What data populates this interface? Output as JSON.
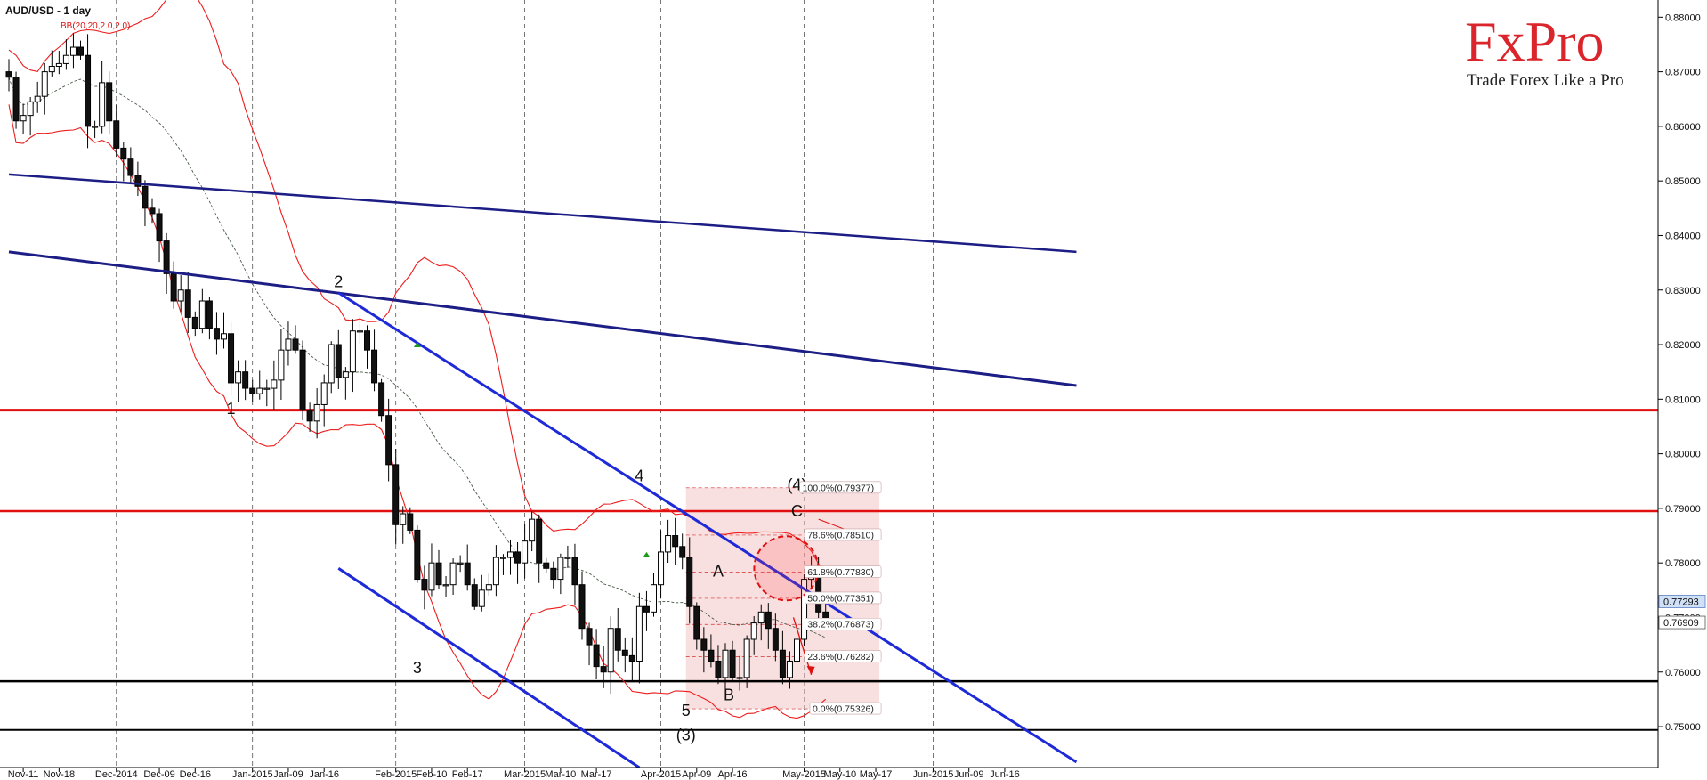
{
  "header": {
    "title": "AUD/USD - 1 day",
    "indicator": "BB(20,20,2.0,2.0)"
  },
  "logo": {
    "brand": "FxPro",
    "tagline": "Trade Forex Like a Pro"
  },
  "colors": {
    "bull": "#ffffff",
    "bear": "#111111",
    "boll": "#ee1c1c",
    "mid": "#4a5a4a",
    "blue": "#1e2ad8",
    "navy": "#1d1d86",
    "red": "#e01010",
    "black": "#000000",
    "fib": "#f4c6c6"
  },
  "chart_data": {
    "type": "candlestick",
    "title": "AUD/USD - 1 day",
    "ylim": [
      0.7425,
      0.8825
    ],
    "y_ticks": [
      0.75,
      0.76,
      0.77,
      0.78,
      0.79,
      0.8,
      0.81,
      0.82,
      0.83,
      0.84,
      0.85,
      0.86,
      0.87,
      0.88
    ],
    "x_labels": [
      {
        "label": "Nov-11",
        "i": 2
      },
      {
        "label": "Nov-18",
        "i": 7
      },
      {
        "label": "Dec-2014",
        "i": 15
      },
      {
        "label": "Dec-09",
        "i": 21
      },
      {
        "label": "Dec-16",
        "i": 26
      },
      {
        "label": "Jan-2015",
        "i": 34
      },
      {
        "label": "Jan-09",
        "i": 39
      },
      {
        "label": "Jan-16",
        "i": 44
      },
      {
        "label": "Feb-2015",
        "i": 54
      },
      {
        "label": "Feb-10",
        "i": 59
      },
      {
        "label": "Feb-17",
        "i": 64
      },
      {
        "label": "Mar-2015",
        "i": 72
      },
      {
        "label": "Mar-10",
        "i": 77
      },
      {
        "label": "Mar-17",
        "i": 82
      },
      {
        "label": "Apr-2015",
        "i": 91
      },
      {
        "label": "Apr-09",
        "i": 96
      },
      {
        "label": "Apr-16",
        "i": 101
      },
      {
        "label": "May-2015",
        "i": 111
      },
      {
        "label": "May-10",
        "i": 116
      },
      {
        "label": "May-17",
        "i": 121
      },
      {
        "label": "Jun-2015",
        "i": 129
      },
      {
        "label": "Jun-09",
        "i": 134
      },
      {
        "label": "Jun-16",
        "i": 139
      }
    ],
    "closes": [
      0.869,
      0.861,
      0.862,
      0.8645,
      0.8655,
      0.87,
      0.871,
      0.8715,
      0.873,
      0.8745,
      0.873,
      0.86,
      0.86,
      0.868,
      0.861,
      0.856,
      0.854,
      0.851,
      0.849,
      0.845,
      0.844,
      0.839,
      0.833,
      0.828,
      0.83,
      0.825,
      0.823,
      0.828,
      0.823,
      0.821,
      0.822,
      0.813,
      0.815,
      0.812,
      0.811,
      0.812,
      0.812,
      0.8135,
      0.819,
      0.821,
      0.819,
      0.808,
      0.806,
      0.809,
      0.813,
      0.82,
      0.814,
      0.815,
      0.8225,
      0.8225,
      0.819,
      0.813,
      0.807,
      0.798,
      0.787,
      0.789,
      0.786,
      0.777,
      0.775,
      0.78,
      0.776,
      0.776,
      0.78,
      0.78,
      0.776,
      0.772,
      0.775,
      0.776,
      0.781,
      0.781,
      0.782,
      0.78,
      0.784,
      0.788,
      0.78,
      0.779,
      0.777,
      0.781,
      0.781,
      0.776,
      0.768,
      0.765,
      0.761,
      0.76,
      0.768,
      0.764,
      0.763,
      0.762,
      0.772,
      0.771,
      0.776,
      0.782,
      0.785,
      0.783,
      0.781,
      0.772,
      0.766,
      0.764,
      0.762,
      0.759,
      0.764,
      0.759,
      0.759,
      0.766,
      0.769,
      0.771,
      0.768,
      0.764,
      0.759,
      0.762,
      0.766,
      0.777,
      0.779,
      0.771,
      0.769
    ],
    "lines": {
      "upper_channel": {
        "from": [
          0,
          0.8512
        ],
        "to": [
          149,
          0.837
        ]
      },
      "mid_channel": {
        "from": [
          0,
          0.837
        ],
        "to": [
          149,
          0.8125
        ]
      },
      "downtrend": {
        "from": [
          46,
          0.8295
        ],
        "to": [
          149,
          0.7435
        ]
      },
      "lower_channel": {
        "from": [
          46,
          0.779
        ],
        "to": [
          88,
          0.7425
        ]
      },
      "resistance_1": 0.808,
      "resistance_2": 0.7895,
      "support_1": 0.7583,
      "support_2": 0.7494
    },
    "fibonacci": {
      "x_start": 94.5,
      "x_end": 121.5,
      "levels": [
        {
          "label": "100.0%(0.79377)",
          "value": 0.79377
        },
        {
          "label": "78.6%(0.78510)",
          "value": 0.7851
        },
        {
          "label": "61.8%(0.77830)",
          "value": 0.7783
        },
        {
          "label": "50.0%(0.77351)",
          "value": 0.77351
        },
        {
          "label": "38.2%(0.76873)",
          "value": 0.76873
        },
        {
          "label": "23.6%(0.76282)",
          "value": 0.76282
        },
        {
          "label": "0.0%(0.75326)",
          "value": 0.75326
        }
      ]
    },
    "wave_labels": [
      {
        "text": "1",
        "i": 31,
        "y": 0.8073
      },
      {
        "text": "2",
        "i": 46,
        "y": 0.8305
      },
      {
        "text": "3",
        "i": 57,
        "y": 0.7598
      },
      {
        "text": "4",
        "i": 88,
        "y": 0.795
      },
      {
        "text": "5",
        "i": 94.5,
        "y": 0.752
      },
      {
        "text": "(3)",
        "i": 94.5,
        "y": 0.7475
      },
      {
        "text": "A",
        "i": 99,
        "y": 0.7775
      },
      {
        "text": "B",
        "i": 100.5,
        "y": 0.7548
      },
      {
        "text": "(4)",
        "i": 110,
        "y": 0.7933
      },
      {
        "text": "C",
        "i": 110,
        "y": 0.7885
      }
    ],
    "price_labels": [
      {
        "text": "0.77293",
        "value": 0.77293,
        "style": "blue"
      },
      {
        "text": "0.76909",
        "value": 0.76909,
        "style": "white"
      }
    ]
  }
}
